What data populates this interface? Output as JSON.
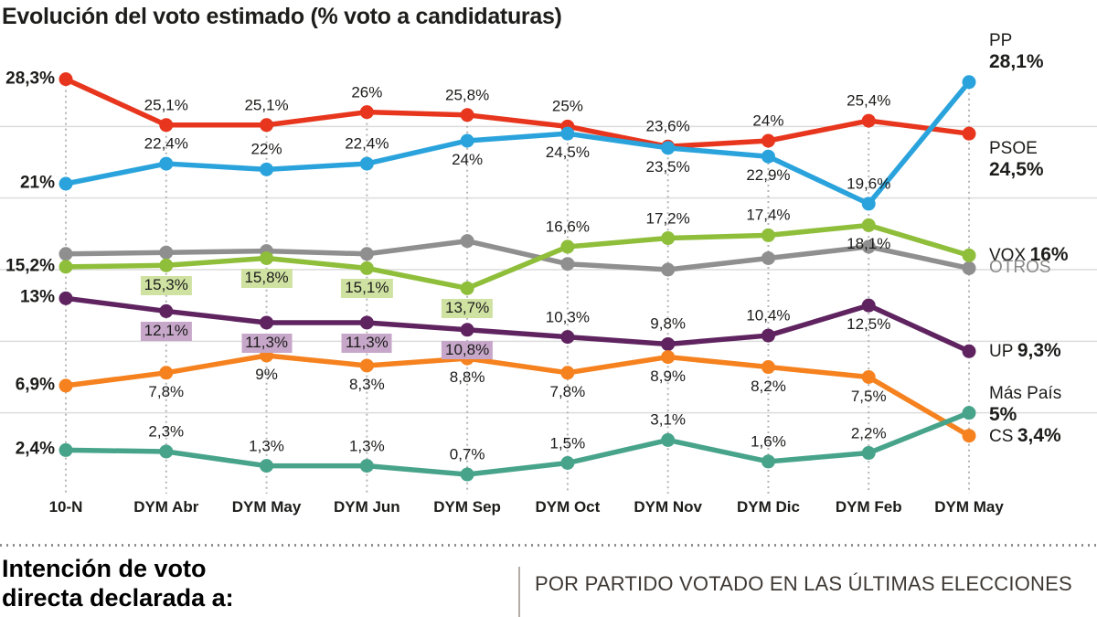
{
  "title": "Evolución del voto estimado (% voto a candidaturas)",
  "chart_data": {
    "type": "line",
    "categories": [
      "10-N",
      "DYM Abr",
      "DYM May",
      "DYM Jun",
      "DYM Sep",
      "DYM Oct",
      "DYM Nov",
      "DYM Dic",
      "DYM Feb",
      "DYM May"
    ],
    "ylim": [
      0,
      30
    ],
    "gridline_values": [
      5,
      10,
      15,
      20,
      25
    ],
    "grid_on": true,
    "legend_position": "right",
    "series": [
      {
        "name": "PP",
        "color": "#2aa3dc",
        "values": [
          21,
          22.4,
          22,
          22.4,
          24,
          24.5,
          23.5,
          22.9,
          19.6,
          28.1
        ],
        "labels": [
          "21%",
          "22,4%",
          "22%",
          "22,4%",
          "24%",
          "24,5%",
          "23,5%",
          "22,9%",
          "19,6%",
          ""
        ],
        "label_placement": [
          "left",
          "above",
          "above",
          "above",
          "below",
          "below",
          "below",
          "below",
          "above",
          "none"
        ],
        "label_highlight": [
          false,
          false,
          false,
          false,
          false,
          false,
          false,
          false,
          false,
          false
        ],
        "legend": {
          "label": "PP",
          "value": "28,1%",
          "layout": "stacked-above"
        }
      },
      {
        "name": "PSOE",
        "color": "#e7361d",
        "values": [
          28.3,
          25.1,
          25.1,
          26,
          25.8,
          25,
          23.6,
          24,
          25.4,
          24.5
        ],
        "labels": [
          "28,3%",
          "25,1%",
          "25,1%",
          "26%",
          "25,8%",
          "25%",
          "23,6%",
          "24%",
          "25,4%",
          ""
        ],
        "label_placement": [
          "left",
          "above",
          "above",
          "above",
          "above",
          "above",
          "above",
          "above",
          "above",
          "none"
        ],
        "label_highlight": [
          false,
          false,
          false,
          false,
          false,
          false,
          false,
          false,
          false,
          false
        ],
        "legend": {
          "label": "PSOE",
          "value": "24,5%",
          "layout": "stacked-below"
        }
      },
      {
        "name": "VOX",
        "color": "#8fbe3a",
        "highlight_color": "#cfe2a2",
        "values": [
          15.2,
          15.3,
          15.8,
          15.1,
          13.7,
          16.6,
          17.2,
          17.4,
          18.1,
          16
        ],
        "labels": [
          "15,2%",
          "15,3%",
          "15,8%",
          "15,1%",
          "13,7%",
          "16,6%",
          "17,2%",
          "17,4%",
          "18,1%",
          ""
        ],
        "label_placement": [
          "left",
          "below",
          "below",
          "below",
          "below",
          "above",
          "above",
          "above",
          "below",
          "none"
        ],
        "label_highlight": [
          false,
          true,
          true,
          true,
          true,
          false,
          false,
          false,
          false,
          false
        ],
        "legend": {
          "label": "VOX",
          "value": "16%",
          "layout": "inline"
        }
      },
      {
        "name": "OTROS",
        "color": "#8f8f8f",
        "values": [
          16.1,
          16.2,
          16.3,
          16.1,
          17.0,
          15.4,
          15.0,
          15.8,
          16.6,
          15.1
        ],
        "labels": [
          "",
          "",
          "",
          "",
          "",
          "",
          "",
          "",
          "",
          ""
        ],
        "label_placement": [
          "none",
          "none",
          "none",
          "none",
          "none",
          "none",
          "none",
          "none",
          "none",
          "none"
        ],
        "label_highlight": [
          false,
          false,
          false,
          false,
          false,
          false,
          false,
          false,
          false,
          false
        ],
        "legend": {
          "label": "OTROS",
          "value": "",
          "layout": "inline-muted"
        }
      },
      {
        "name": "UP",
        "color": "#5f2360",
        "highlight_color": "#c7a7c9",
        "values": [
          13,
          12.1,
          11.3,
          11.3,
          10.8,
          10.3,
          9.8,
          10.4,
          12.5,
          9.3
        ],
        "labels": [
          "13%",
          "12,1%",
          "11,3%",
          "11,3%",
          "10,8%",
          "10,3%",
          "9,8%",
          "10,4%",
          "12,5%",
          ""
        ],
        "label_placement": [
          "left",
          "below",
          "below",
          "below",
          "below",
          "above",
          "above",
          "above",
          "below",
          "none"
        ],
        "label_highlight": [
          false,
          true,
          true,
          true,
          true,
          false,
          false,
          false,
          false,
          false
        ],
        "legend": {
          "label": "UP",
          "value": "9,3%",
          "layout": "inline"
        }
      },
      {
        "name": "CS",
        "color": "#f5821f",
        "values": [
          6.9,
          7.8,
          9,
          8.3,
          8.8,
          7.8,
          8.9,
          8.2,
          7.5,
          3.4
        ],
        "labels": [
          "6,9%",
          "7,8%",
          "9%",
          "8,3%",
          "8,8%",
          "7,8%",
          "8,9%",
          "8,2%",
          "7,5%",
          ""
        ],
        "label_placement": [
          "left",
          "below",
          "below",
          "below",
          "below",
          "below",
          "below",
          "below",
          "below",
          "none"
        ],
        "label_highlight": [
          false,
          false,
          false,
          false,
          false,
          false,
          false,
          false,
          false,
          false
        ],
        "legend": {
          "label": "CS",
          "value": "3,4%",
          "layout": "inline"
        }
      },
      {
        "name": "Más País",
        "color": "#47a48b",
        "values": [
          2.4,
          2.3,
          1.3,
          1.3,
          0.7,
          1.5,
          3.1,
          1.6,
          2.2,
          5
        ],
        "labels": [
          "2,4%",
          "2,3%",
          "1,3%",
          "1,3%",
          "0,7%",
          "1,5%",
          "3,1%",
          "1,6%",
          "2,2%",
          ""
        ],
        "label_placement": [
          "left",
          "above",
          "above",
          "above",
          "above",
          "above",
          "above",
          "above",
          "above",
          "none"
        ],
        "label_highlight": [
          false,
          false,
          false,
          false,
          false,
          false,
          false,
          false,
          false,
          false
        ],
        "legend": {
          "label": "Más País",
          "value": "5%",
          "layout": "stacked-name-above"
        }
      }
    ]
  },
  "footer": {
    "left_heading_line1": "Intención de voto",
    "left_heading_line2": "directa declarada a:",
    "right_heading": "POR PARTIDO VOTADO EN LAS ÚLTIMAS ELECCIONES"
  }
}
